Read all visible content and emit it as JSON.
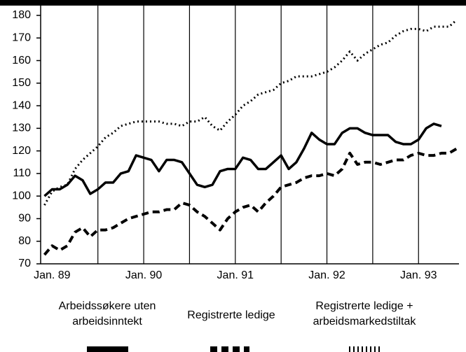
{
  "chart_data": {
    "type": "line",
    "x": [
      -1,
      0,
      1,
      2,
      3,
      4,
      5,
      6,
      7,
      8,
      9,
      10,
      11,
      12,
      13,
      14,
      15,
      16,
      17,
      18,
      19,
      20,
      21,
      22,
      23,
      24,
      25,
      26,
      27,
      28,
      29,
      30,
      31,
      32,
      33,
      34,
      35,
      36,
      37,
      38,
      39,
      40,
      41,
      42,
      43,
      44,
      45,
      46,
      47,
      48,
      49,
      50,
      51,
      52,
      53
    ],
    "xlim": [
      -1.5,
      53.3
    ],
    "xticks": [
      {
        "value": 0,
        "label": "Jan. 89"
      },
      {
        "value": 12,
        "label": "Jan. 90"
      },
      {
        "value": 24,
        "label": "Jan. 91"
      },
      {
        "value": 36,
        "label": "Jan. 92"
      },
      {
        "value": 48,
        "label": "Jan. 93"
      }
    ],
    "vlines": [
      6,
      12,
      18,
      24,
      30,
      36,
      42,
      48
    ],
    "ylim": [
      70,
      180
    ],
    "yticks": [
      70,
      80,
      90,
      100,
      110,
      120,
      130,
      140,
      150,
      160,
      170,
      180
    ],
    "series": [
      {
        "name": "Arbeidssøkere uten arbeidsinntekt",
        "style": "solid",
        "color": "#000000",
        "values": [
          100,
          103,
          103,
          105,
          109,
          107,
          101,
          103,
          106,
          106,
          110,
          111,
          118,
          117,
          116,
          111,
          116,
          116,
          115,
          110,
          105,
          104,
          105,
          111,
          112,
          112,
          117,
          116,
          112,
          112,
          115,
          118,
          112,
          115,
          121,
          128,
          125,
          123,
          123,
          128,
          130,
          130,
          128,
          127,
          127,
          127,
          124,
          123,
          123,
          125,
          130,
          132,
          131,
          null,
          null
        ]
      },
      {
        "name": "Registrerte ledige",
        "style": "dashed",
        "color": "#000000",
        "values": [
          74,
          78,
          76,
          78,
          84,
          86,
          82,
          85,
          85,
          86,
          88,
          90,
          91,
          92,
          93,
          93,
          94,
          94,
          97,
          96,
          93,
          91,
          88,
          85,
          90,
          93,
          95,
          96,
          93,
          97,
          100,
          104,
          105,
          106,
          108,
          109,
          109,
          110,
          109,
          112,
          119,
          114,
          115,
          115,
          114,
          115,
          116,
          116,
          118,
          119,
          118,
          118,
          119,
          119,
          121
        ]
      },
      {
        "name": "Registrerte ledige + arbeidsmarkedstiltak",
        "style": "dotted",
        "color": "#000000",
        "values": [
          96,
          102,
          104,
          105,
          112,
          116,
          119,
          122,
          126,
          128,
          131,
          132,
          133,
          133,
          133,
          133,
          132,
          132,
          131,
          133,
          133,
          135,
          131,
          129,
          133,
          136,
          140,
          142,
          145,
          146,
          147,
          150,
          151,
          153,
          153,
          153,
          154,
          155,
          157,
          160,
          164,
          160,
          163,
          165,
          167,
          168,
          171,
          173,
          174,
          174,
          173,
          175,
          175,
          175,
          178
        ]
      }
    ]
  }
}
